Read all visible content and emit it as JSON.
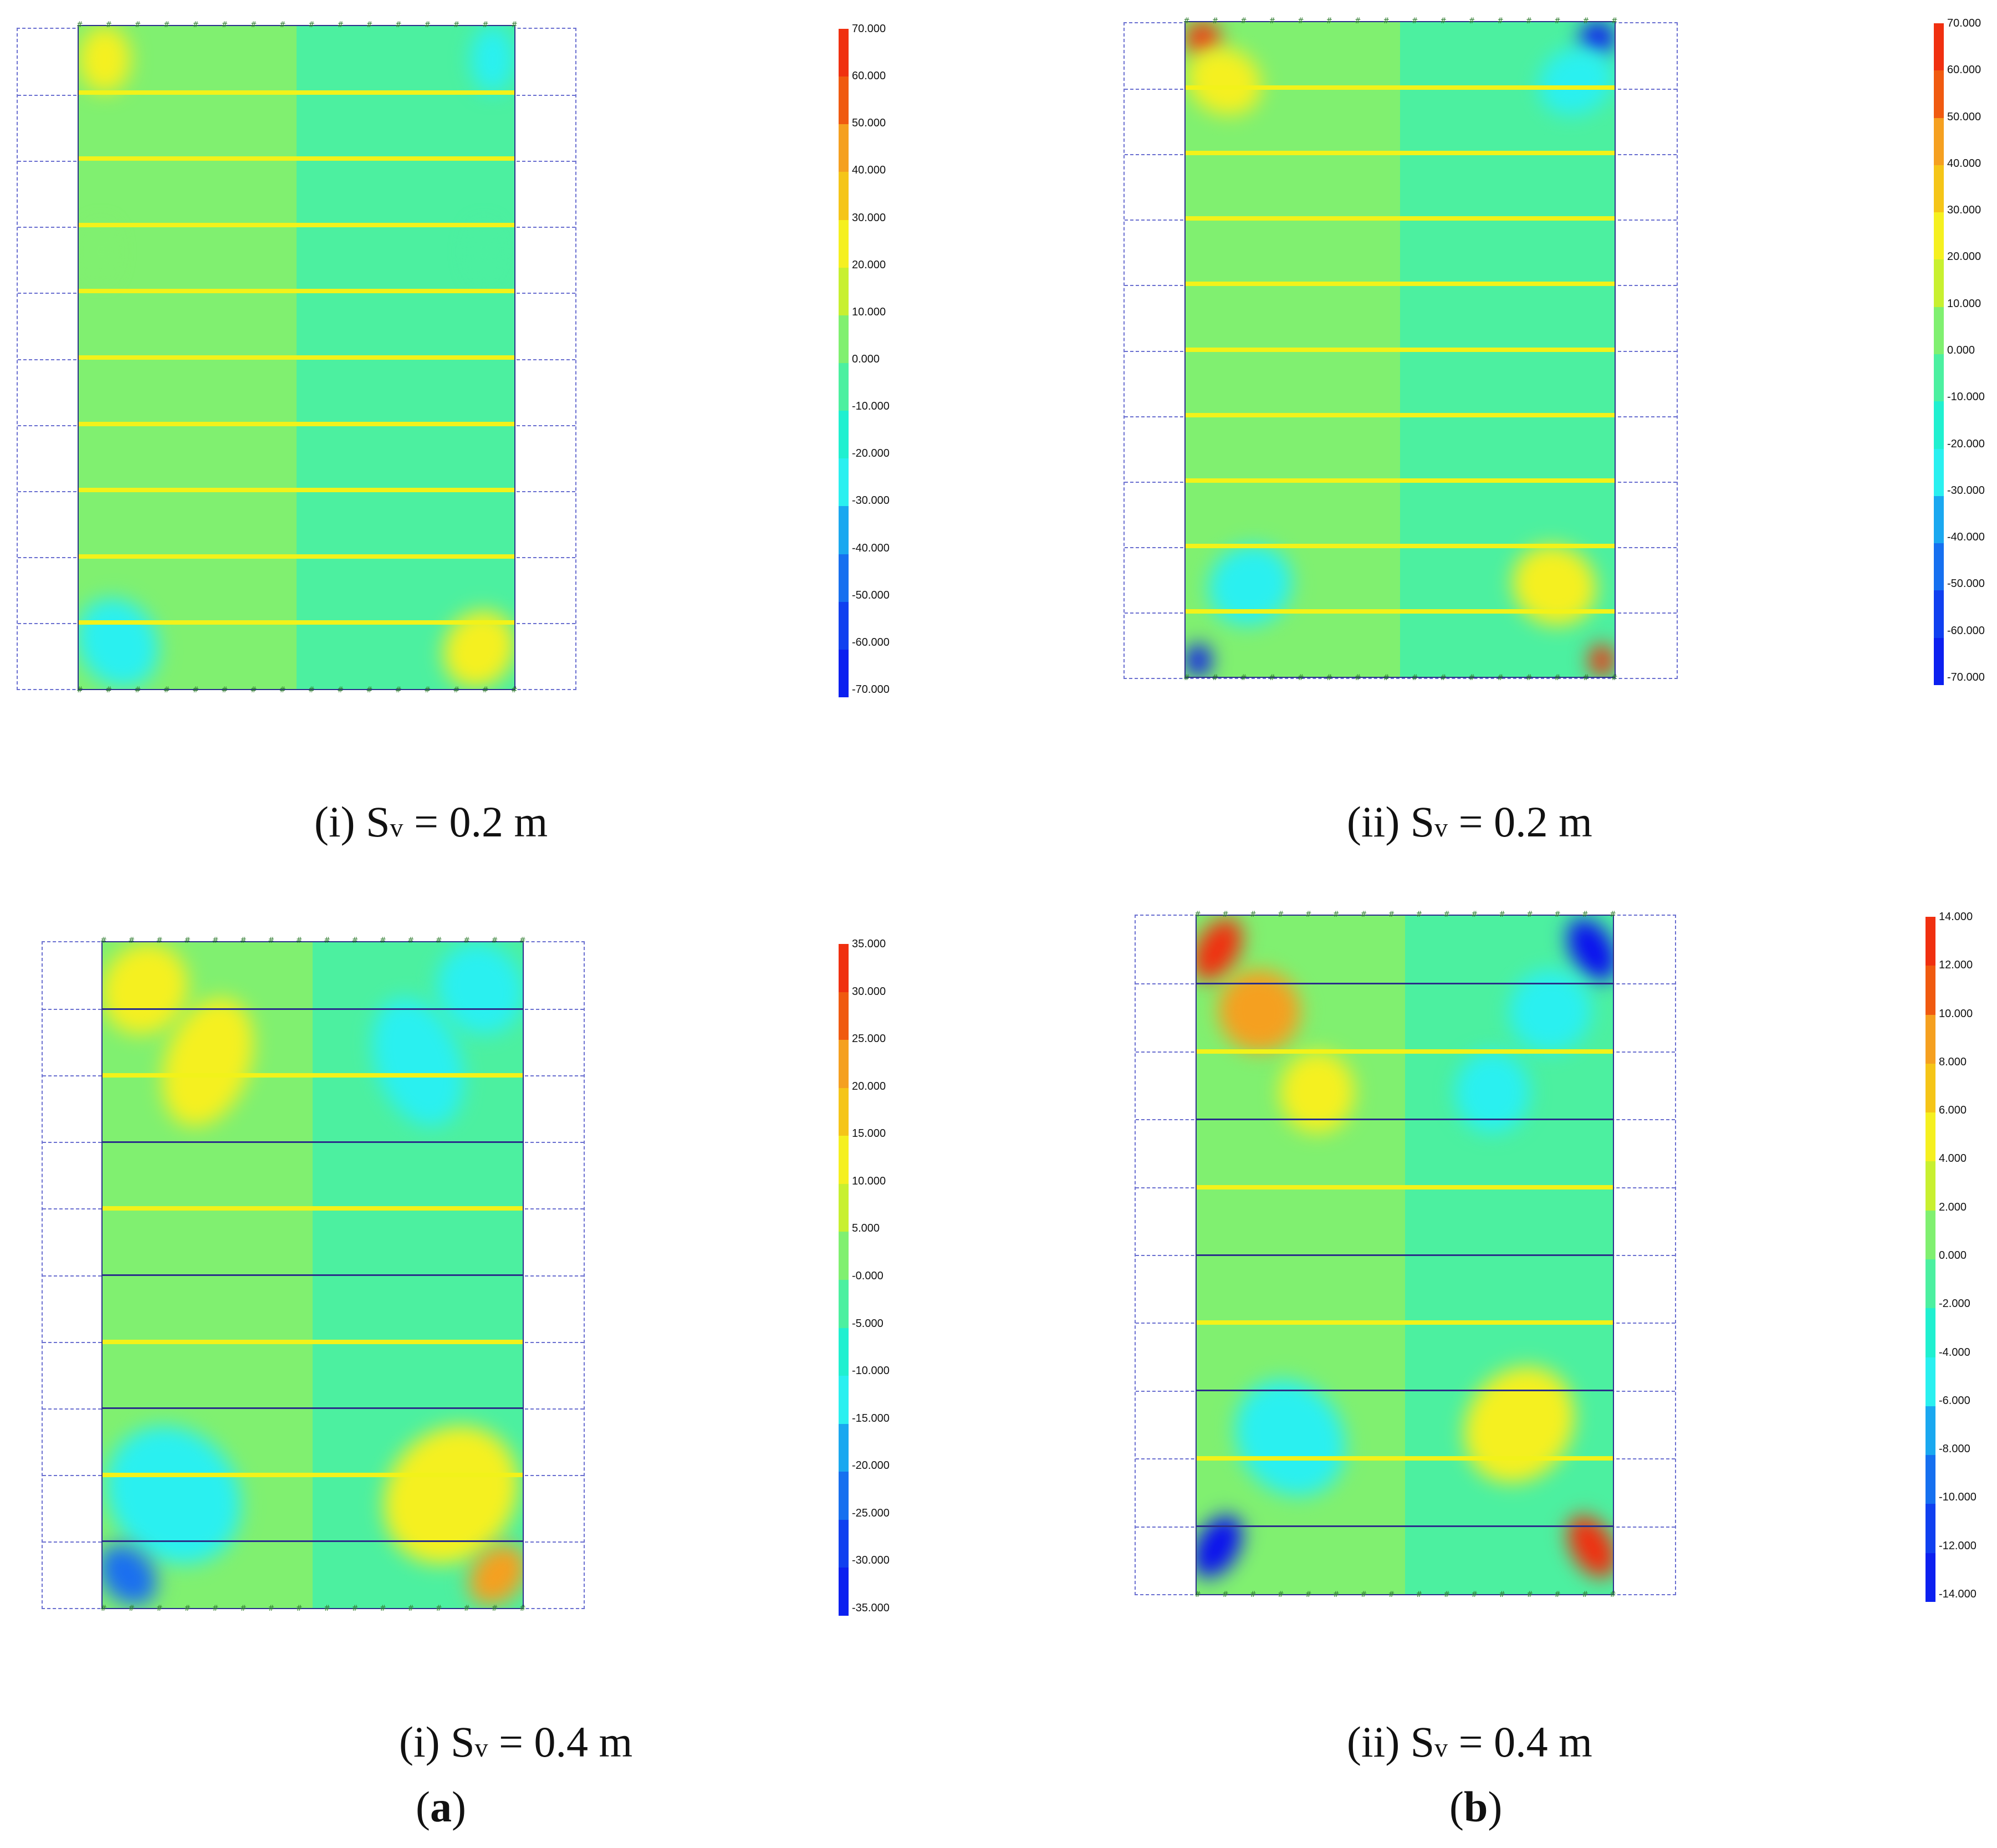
{
  "chart_data": [
    {
      "type": "heatmap",
      "panel": "a-i",
      "caption_prefix": "(i) S",
      "caption_sub": "v",
      "caption_suffix": " = 0.2 m",
      "colorbar": {
        "min": -70,
        "max": 70,
        "ticks": [
          "70.000",
          "60.000",
          "50.000",
          "40.000",
          "30.000",
          "20.000",
          "10.000",
          "0.000",
          "-10.000",
          "-20.000",
          "-30.000",
          "-40.000",
          "-50.000",
          "-60.000",
          "-70.000"
        ]
      },
      "reinforcement_layers": 9,
      "layers_style": "yellow"
    },
    {
      "type": "heatmap",
      "panel": "b-ii",
      "caption_prefix": "(ii) S",
      "caption_sub": "v",
      "caption_suffix": " = 0.2 m",
      "colorbar": {
        "min": -70,
        "max": 70,
        "ticks": [
          "70.000",
          "60.000",
          "50.000",
          "40.000",
          "30.000",
          "20.000",
          "10.000",
          "0.000",
          "-10.000",
          "-20.000",
          "-30.000",
          "-40.000",
          "-50.000",
          "-60.000",
          "-70.000"
        ]
      },
      "reinforcement_layers": 9,
      "layers_style": "yellow"
    },
    {
      "type": "heatmap",
      "panel": "a-i-0.4",
      "caption_prefix": "(i) S",
      "caption_sub": "v",
      "caption_suffix": " = 0.4 m",
      "colorbar": {
        "min": -35,
        "max": 35,
        "ticks": [
          "35.000",
          "30.000",
          "25.000",
          "20.000",
          "15.000",
          "10.000",
          "5.000",
          "-0.000",
          "-5.000",
          "-10.000",
          "-15.000",
          "-20.000",
          "-25.000",
          "-30.000",
          "-35.000"
        ]
      },
      "reinforcement_layers": 9,
      "layers_style": "alternating"
    },
    {
      "type": "heatmap",
      "panel": "b-ii-0.4",
      "caption_prefix": "(ii) S",
      "caption_sub": "v",
      "caption_suffix": " = 0.4 m",
      "colorbar": {
        "min": -14,
        "max": 14,
        "ticks": [
          "14.000",
          "12.000",
          "10.000",
          "8.000",
          "6.000",
          "4.000",
          "2.000",
          "0.000",
          "-2.000",
          "-4.000",
          "-6.000",
          "-8.000",
          "-10.000",
          "-12.000",
          "-14.000"
        ]
      },
      "reinforcement_layers": 9,
      "layers_style": "alternating"
    }
  ],
  "figure_labels": {
    "a": "a",
    "b": "b"
  },
  "colors": {
    "deep_blue": "#0a10f0",
    "cyan": "#2af0f0",
    "teal_green": "#4cf0a0",
    "light_green": "#80f070",
    "yellow": "#f5f020",
    "orange": "#f5a020",
    "red": "#f03010",
    "reinforcement": "#f2f21a",
    "frame": "#2a2f8a"
  }
}
